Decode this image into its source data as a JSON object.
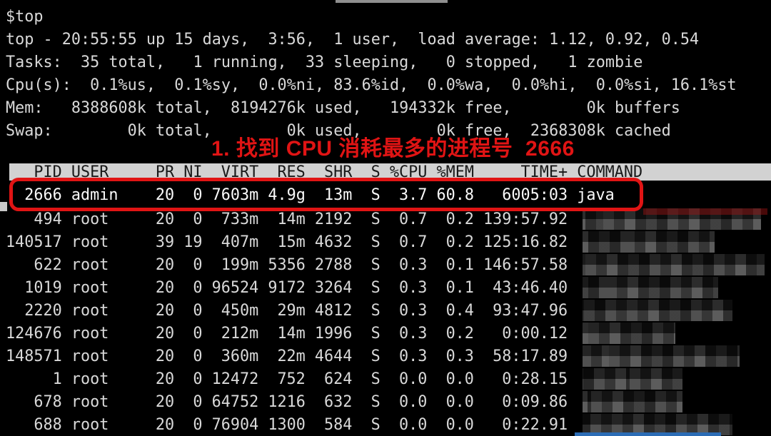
{
  "terminal": {
    "command_line": "$top",
    "summary_lines": [
      "top - 20:55:55 up 15 days,  3:56,  1 user,  load average: 1.12, 0.92, 0.54",
      "Tasks:  35 total,   1 running,  33 sleeping,   0 stopped,   1 zombie",
      "Cpu(s):  0.1%us,  0.1%sy,  0.0%ni, 83.6%id,  0.0%wa,  0.0%hi,  0.0%si, 16.1%st",
      "Mem:   8388608k total,  8194276k used,   194332k free,        0k buffers",
      "Swap:        0k total,        0k used,        0k free,  2368308k cached"
    ]
  },
  "annotation": {
    "text": "1. 找到 CPU 消耗最多的进程号  2666"
  },
  "process_table": {
    "columns": [
      "PID",
      "USER",
      "PR",
      "NI",
      "VIRT",
      "RES",
      "SHR",
      "S",
      "%CPU",
      "%MEM",
      "TIME+",
      "COMMAND"
    ],
    "rows": [
      {
        "pid": "2666",
        "user": "admin",
        "pr": "20",
        "ni": "0",
        "virt": "7603m",
        "res": "4.9g",
        "shr": "13m",
        "s": "S",
        "cpu": "3.7",
        "mem": "60.8",
        "time": "6005:03",
        "command": "java",
        "highlighted": true,
        "command_censored": false
      },
      {
        "pid": "494",
        "user": "root",
        "pr": "20",
        "ni": "0",
        "virt": "733m",
        "res": "14m",
        "shr": "2192",
        "s": "S",
        "cpu": "0.7",
        "mem": "0.2",
        "time": "139:57.92",
        "command": "",
        "highlighted": false,
        "command_censored": true
      },
      {
        "pid": "140517",
        "user": "root",
        "pr": "39",
        "ni": "19",
        "virt": "407m",
        "res": "15m",
        "shr": "4632",
        "s": "S",
        "cpu": "0.7",
        "mem": "0.2",
        "time": "125:16.82",
        "command": "",
        "highlighted": false,
        "command_censored": true
      },
      {
        "pid": "622",
        "user": "root",
        "pr": "20",
        "ni": "0",
        "virt": "199m",
        "res": "5356",
        "shr": "2788",
        "s": "S",
        "cpu": "0.3",
        "mem": "0.1",
        "time": "146:57.58",
        "command": "",
        "highlighted": false,
        "command_censored": true
      },
      {
        "pid": "1019",
        "user": "root",
        "pr": "20",
        "ni": "0",
        "virt": "96524",
        "res": "9172",
        "shr": "3264",
        "s": "S",
        "cpu": "0.3",
        "mem": "0.1",
        "time": "43:46.40",
        "command": "",
        "highlighted": false,
        "command_censored": true
      },
      {
        "pid": "2220",
        "user": "root",
        "pr": "20",
        "ni": "0",
        "virt": "450m",
        "res": "29m",
        "shr": "4812",
        "s": "S",
        "cpu": "0.3",
        "mem": "0.4",
        "time": "93:47.96",
        "command": "",
        "highlighted": false,
        "command_censored": true
      },
      {
        "pid": "124676",
        "user": "root",
        "pr": "20",
        "ni": "0",
        "virt": "212m",
        "res": "14m",
        "shr": "1996",
        "s": "S",
        "cpu": "0.3",
        "mem": "0.2",
        "time": "0:00.12",
        "command": "",
        "highlighted": false,
        "command_censored": true
      },
      {
        "pid": "148571",
        "user": "root",
        "pr": "20",
        "ni": "0",
        "virt": "360m",
        "res": "22m",
        "shr": "4644",
        "s": "S",
        "cpu": "0.3",
        "mem": "0.3",
        "time": "58:17.89",
        "command": "",
        "highlighted": false,
        "command_censored": true
      },
      {
        "pid": "1",
        "user": "root",
        "pr": "20",
        "ni": "0",
        "virt": "12472",
        "res": "752",
        "shr": "624",
        "s": "S",
        "cpu": "0.0",
        "mem": "0.0",
        "time": "0:28.15",
        "command": "",
        "highlighted": false,
        "command_censored": true
      },
      {
        "pid": "678",
        "user": "root",
        "pr": "20",
        "ni": "0",
        "virt": "64752",
        "res": "1216",
        "shr": "632",
        "s": "S",
        "cpu": "0.0",
        "mem": "0.0",
        "time": "0:09.86",
        "command": "",
        "highlighted": false,
        "command_censored": true
      },
      {
        "pid": "688",
        "user": "root",
        "pr": "20",
        "ni": "0",
        "virt": "76904",
        "res": "1300",
        "shr": "584",
        "s": "S",
        "cpu": "0.0",
        "mem": "0.0",
        "time": "0:22.91",
        "command": "",
        "highlighted": false,
        "command_censored": true
      }
    ]
  },
  "colors": {
    "background": "#000000",
    "terminal_text": "#d9d9d9",
    "annotation_red": "#e01414",
    "highlight_box_red": "#e01414",
    "header_bg": "#d2d2d2",
    "header_text": "#181818",
    "bottom_bar_blue": "#2b6cb5"
  }
}
